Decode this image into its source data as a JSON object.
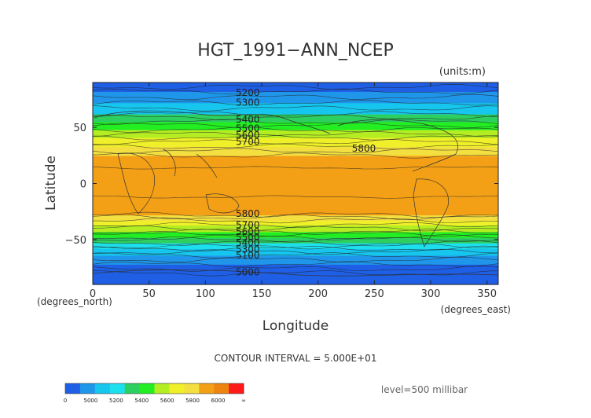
{
  "chart_data": {
    "type": "heatmap",
    "title": "HGT_1991−ANN_NCEP",
    "units_label": "(units:m)",
    "xlabel": "Longitude",
    "ylabel": "Latitude",
    "x_units_label": "(degrees_east)",
    "y_units_label": "(degrees_north)",
    "xlim": [
      0,
      360
    ],
    "ylim": [
      -90,
      90
    ],
    "x_ticks": [
      0,
      50,
      100,
      150,
      200,
      250,
      300,
      350
    ],
    "y_ticks": [
      -50,
      0,
      50
    ],
    "y_tick_labels": [
      "−50",
      "0",
      "50"
    ],
    "contour_interval_text": "CONTOUR INTERVAL = 5.000E+01",
    "level_text": "level=500 millibar",
    "contour_labels": [
      {
        "text": "5200",
        "lon": 127,
        "lat": 81
      },
      {
        "text": "5300",
        "lon": 127,
        "lat": 72
      },
      {
        "text": "5400",
        "lon": 127,
        "lat": 57
      },
      {
        "text": "5500",
        "lon": 127,
        "lat": 49
      },
      {
        "text": "5600",
        "lon": 127,
        "lat": 43
      },
      {
        "text": "5700",
        "lon": 127,
        "lat": 37
      },
      {
        "text": "5800",
        "lon": 230,
        "lat": 31
      },
      {
        "text": "5800",
        "lon": 127,
        "lat": -27
      },
      {
        "text": "5700",
        "lon": 127,
        "lat": -37
      },
      {
        "text": "5600",
        "lon": 127,
        "lat": -43
      },
      {
        "text": "5500",
        "lon": 127,
        "lat": -48
      },
      {
        "text": "5400",
        "lon": 127,
        "lat": -53
      },
      {
        "text": "5300",
        "lon": 127,
        "lat": -59
      },
      {
        "text": "5100",
        "lon": 127,
        "lat": -64
      },
      {
        "text": "5000",
        "lon": 127,
        "lat": -79
      }
    ],
    "bands": [
      {
        "from": -90,
        "to": -72,
        "color": "#1e5fe6"
      },
      {
        "from": -72,
        "to": -64,
        "color": "#1f96ea"
      },
      {
        "from": -64,
        "to": -58,
        "color": "#16c6ee"
      },
      {
        "from": -58,
        "to": -53,
        "color": "#1de0ee"
      },
      {
        "from": -53,
        "to": -48,
        "color": "#2dd060"
      },
      {
        "from": -48,
        "to": -43,
        "color": "#22ee22"
      },
      {
        "from": -43,
        "to": -37,
        "color": "#b4ee22"
      },
      {
        "from": -37,
        "to": -33,
        "color": "#f0f02a"
      },
      {
        "from": -33,
        "to": -28,
        "color": "#f4df40"
      },
      {
        "from": -28,
        "to": 25,
        "color": "#f4a016"
      },
      {
        "from": 25,
        "to": 33,
        "color": "#f4df40"
      },
      {
        "from": 33,
        "to": 41,
        "color": "#f0f02a"
      },
      {
        "from": 41,
        "to": 48,
        "color": "#b4ee22"
      },
      {
        "from": 48,
        "to": 55,
        "color": "#22ee22"
      },
      {
        "from": 55,
        "to": 62,
        "color": "#2dd060"
      },
      {
        "from": 62,
        "to": 72,
        "color": "#16c6ee"
      },
      {
        "from": 72,
        "to": 82,
        "color": "#1f96ea"
      },
      {
        "from": 82,
        "to": 90,
        "color": "#1e5fe6"
      }
    ],
    "colorbar": {
      "labels": [
        "0",
        "5000",
        "5200",
        "5400",
        "5600",
        "5800",
        "6000",
        "∞"
      ],
      "colors": [
        "#1e5fe6",
        "#1f96ea",
        "#16c6ee",
        "#1de0ee",
        "#2dd060",
        "#22ee22",
        "#b4ee22",
        "#f0f02a",
        "#f4df40",
        "#f4a016",
        "#ee8410",
        "#ff1a1a"
      ]
    }
  }
}
